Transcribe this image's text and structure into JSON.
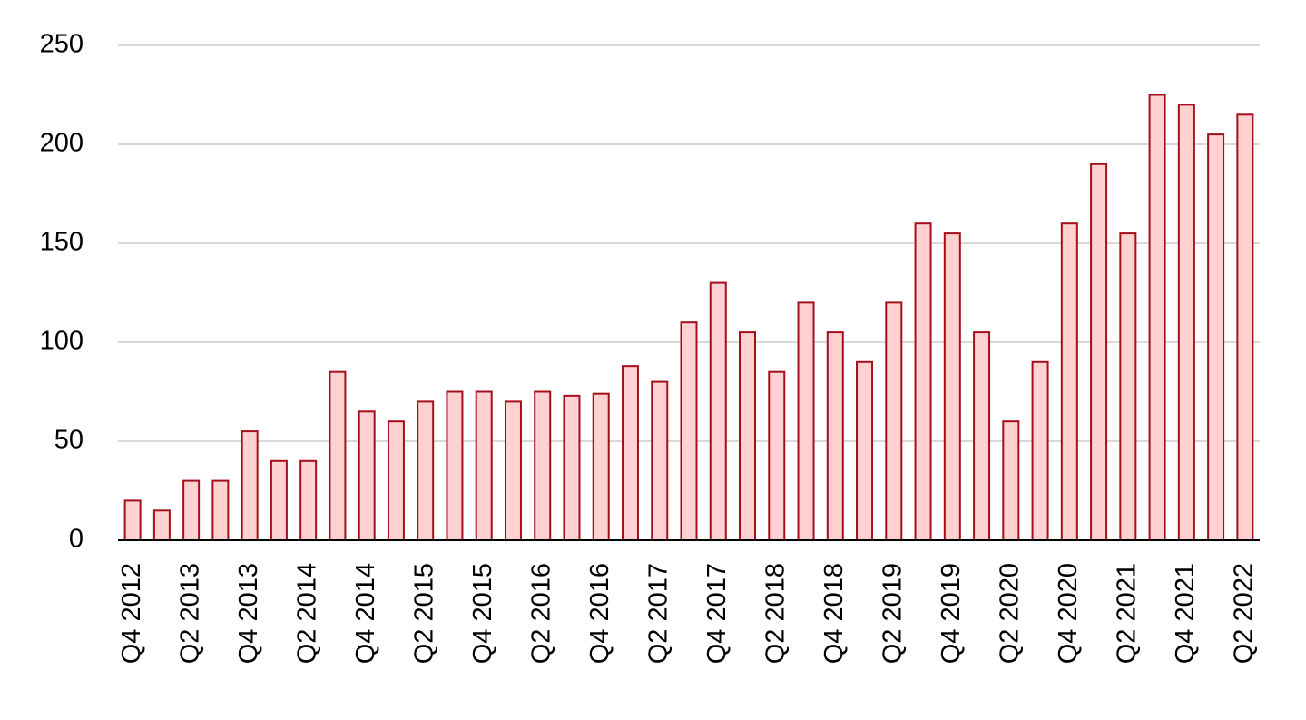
{
  "chart_data": {
    "type": "bar",
    "categories": [
      "Q4 2012",
      null,
      "Q2 2013",
      null,
      "Q4 2013",
      null,
      "Q2 2014",
      null,
      "Q4 2014",
      null,
      "Q2 2015",
      null,
      "Q4 2015",
      null,
      "Q2 2016",
      null,
      "Q4 2016",
      null,
      "Q2 2017",
      null,
      "Q4 2017",
      null,
      "Q2 2018",
      null,
      "Q4 2018",
      null,
      "Q2 2019",
      null,
      "Q4 2019",
      null,
      "Q2 2020",
      null,
      "Q4 2020",
      null,
      "Q2 2021",
      null,
      "Q4 2021",
      null,
      "Q2 2022"
    ],
    "values": [
      20,
      15,
      30,
      30,
      55,
      40,
      40,
      85,
      65,
      60,
      70,
      75,
      75,
      70,
      75,
      73,
      74,
      88,
      80,
      110,
      130,
      105,
      85,
      120,
      105,
      90,
      120,
      160,
      155,
      105,
      60,
      90,
      160,
      190,
      155,
      225,
      220,
      205,
      215
    ],
    "color": "#ffd1d1",
    "edge_color": "#a50f1c",
    "ylim": [
      0,
      250
    ],
    "yticks": [
      0,
      50,
      100,
      150,
      200,
      250
    ],
    "grid": true
  }
}
